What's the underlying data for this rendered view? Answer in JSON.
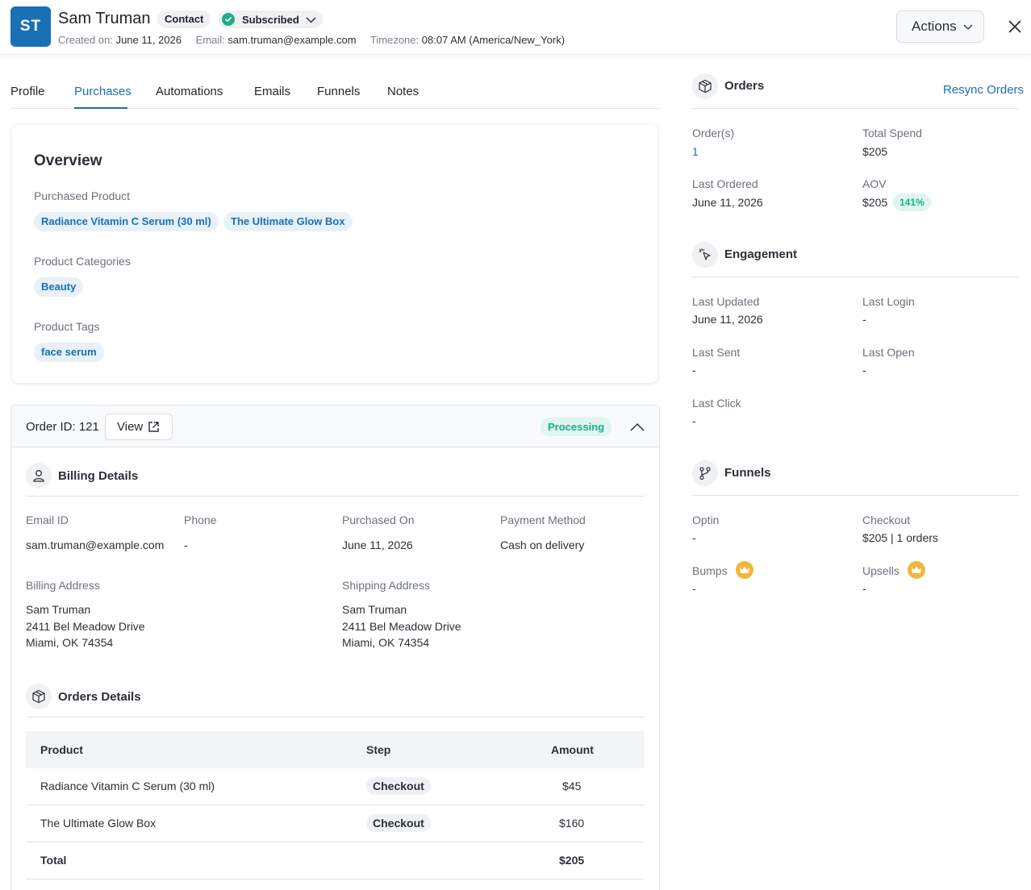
{
  "contact": {
    "initials": "ST",
    "name": "Sam Truman",
    "type_badge": "Contact",
    "status": "Subscribed",
    "created_label": "Created on:",
    "created_value": "June 11, 2026",
    "email_label": "Email:",
    "email_value": "sam.truman@example.com",
    "timezone_label": "Timezone:",
    "timezone_value": "08:07 AM (America/New_York)"
  },
  "header": {
    "actions_label": "Actions"
  },
  "tabs": [
    {
      "label": "Profile"
    },
    {
      "label": "Purchases",
      "active": true
    },
    {
      "label": "Automations"
    },
    {
      "label": "Emails"
    },
    {
      "label": "Funnels"
    },
    {
      "label": "Notes"
    }
  ],
  "overview": {
    "title": "Overview",
    "purchased_product_label": "Purchased Product",
    "purchased_products": [
      "Radiance Vitamin C Serum (30 ml)",
      "The Ultimate Glow Box"
    ],
    "categories_label": "Product Categories",
    "categories": [
      "Beauty"
    ],
    "tags_label": "Product Tags",
    "tags": [
      "face serum"
    ]
  },
  "order": {
    "id_text": "Order ID: 121",
    "view_label": "View",
    "status": "Processing",
    "billing": {
      "title": "Billing Details",
      "email_label": "Email ID",
      "email_value": "sam.truman@example.com",
      "phone_label": "Phone",
      "phone_value": "-",
      "purchased_on_label": "Purchased On",
      "purchased_on_value": "June 11, 2026",
      "payment_label": "Payment Method",
      "payment_value": "Cash on delivery",
      "billing_address_label": "Billing Address",
      "billing_address": [
        "Sam Truman",
        "2411 Bel Meadow Drive",
        "Miami, OK 74354"
      ],
      "shipping_address_label": "Shipping Address",
      "shipping_address": [
        "Sam Truman",
        "2411 Bel Meadow Drive",
        "Miami, OK 74354"
      ]
    },
    "details": {
      "title": "Orders Details",
      "columns": [
        "Product",
        "Step",
        "Amount"
      ],
      "rows": [
        {
          "product": "Radiance Vitamin C Serum (30 ml)",
          "step": "Checkout",
          "amount": "$45"
        },
        {
          "product": "The Ultimate Glow Box",
          "step": "Checkout",
          "amount": "$160"
        }
      ],
      "total_label": "Total",
      "total_value": "$205"
    }
  },
  "sidebar": {
    "orders": {
      "title": "Orders",
      "resync_label": "Resync Orders",
      "orders_label": "Order(s)",
      "orders_value": "1",
      "total_spend_label": "Total Spend",
      "total_spend_value": "$205",
      "last_ordered_label": "Last Ordered",
      "last_ordered_value": "June 11, 2026",
      "aov_label": "AOV",
      "aov_value": "$205",
      "aov_badge": "141%"
    },
    "engagement": {
      "title": "Engagement",
      "last_updated_label": "Last Updated",
      "last_updated_value": "June 11, 2026",
      "last_login_label": "Last Login",
      "last_login_value": "-",
      "last_sent_label": "Last Sent",
      "last_sent_value": "-",
      "last_open_label": "Last Open",
      "last_open_value": "-",
      "last_click_label": "Last Click",
      "last_click_value": "-"
    },
    "funnels": {
      "title": "Funnels",
      "optin_label": "Optin",
      "optin_value": "-",
      "checkout_label": "Checkout",
      "checkout_value": "$205 | 1 orders",
      "bumps_label": "Bumps",
      "bumps_value": "-",
      "upsells_label": "Upsells",
      "upsells_value": "-"
    }
  },
  "colors": {
    "accent": "#1a6fb5",
    "success": "#1cae8a",
    "premium": "#f4b63a"
  }
}
